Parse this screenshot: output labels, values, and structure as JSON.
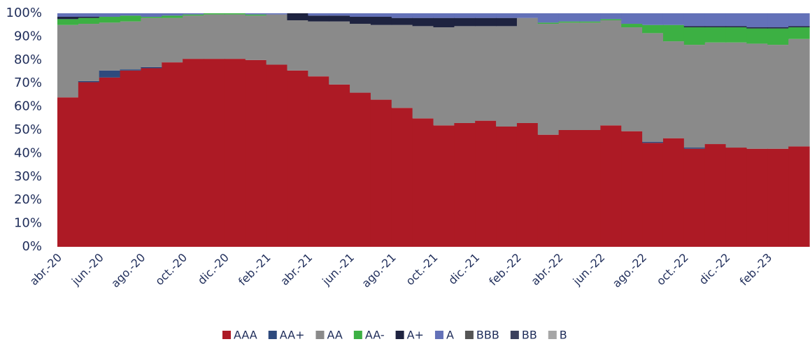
{
  "chart_data": {
    "type": "stacked-step-area",
    "categories": [
      "abr.-20",
      null,
      "jun.-20",
      null,
      "ago.-20",
      null,
      "oct.-20",
      null,
      "dic.-20",
      null,
      "feb.-21",
      null,
      "abr.-21",
      null,
      "jun.-21",
      null,
      "ago.-21",
      null,
      "oct.-21",
      null,
      "dic.-21",
      null,
      "feb.-22",
      null,
      "abr.-22",
      null,
      "jun.-22",
      null,
      "ago.-22",
      null,
      "oct.-22",
      null,
      "dic.-22",
      null,
      "feb.-23",
      null
    ],
    "series": [
      {
        "name": "AAA",
        "color": "#ad1a25",
        "values": [
          64,
          70.5,
          72.5,
          75.5,
          76.5,
          79,
          80.5,
          80.5,
          80.5,
          80,
          78,
          75.5,
          73,
          69.5,
          66,
          63,
          59.5,
          55,
          52,
          53,
          54,
          51.5,
          53,
          48,
          50,
          50,
          52,
          49.5,
          44.5,
          46.5,
          42,
          44,
          42.5,
          42,
          42,
          43
        ]
      },
      {
        "name": "AA+",
        "color": "#2e4a7d",
        "values": [
          0,
          0.5,
          3,
          0.5,
          0.5,
          0,
          0,
          0,
          0,
          0,
          0,
          0,
          0,
          0,
          0,
          0,
          0,
          0,
          0,
          0,
          0,
          0,
          0,
          0,
          0,
          0,
          0,
          0,
          0.5,
          0,
          0.5,
          0,
          0,
          0,
          0,
          0
        ]
      },
      {
        "name": "AA",
        "color": "#8a8a8a",
        "values": [
          31,
          24.5,
          20.5,
          20.5,
          21,
          19,
          18.5,
          19,
          19,
          19,
          21.5,
          21.5,
          23.5,
          27,
          29.5,
          32,
          35.5,
          39.5,
          42,
          41.5,
          40.5,
          43,
          45,
          47.5,
          46,
          46,
          45,
          44.5,
          46.5,
          41.5,
          44,
          43.5,
          45,
          45,
          44.5,
          46
        ]
      },
      {
        "name": "AA-",
        "color": "#3cb043",
        "values": [
          2.5,
          2.5,
          2.5,
          2.5,
          0.5,
          1,
          0.5,
          0.5,
          0.5,
          0.5,
          0,
          0,
          0,
          0,
          0,
          0,
          0,
          0,
          0,
          0,
          0,
          0,
          0,
          0.5,
          0.5,
          0.5,
          0.5,
          1.5,
          3.5,
          7,
          7.5,
          6.5,
          6.5,
          6.5,
          7,
          5
        ]
      },
      {
        "name": "A+",
        "color": "#1e2340",
        "values": [
          1,
          0.5,
          0,
          0,
          0,
          0,
          0,
          0,
          0,
          0,
          0,
          3,
          2.5,
          2.5,
          3,
          3.5,
          3,
          3.5,
          4,
          3.5,
          3.5,
          3.5,
          0,
          0,
          0,
          0,
          0,
          0,
          0,
          0,
          0.5,
          0.5,
          0.5,
          0.5,
          0.5,
          0.5
        ]
      },
      {
        "name": "A",
        "color": "#6371b8",
        "values": [
          1.5,
          1.5,
          1.5,
          1,
          1.5,
          1,
          0.5,
          0,
          0,
          0.5,
          0.5,
          0,
          1,
          1,
          1.5,
          1.5,
          2,
          2,
          2,
          2,
          2,
          2,
          2,
          4,
          3.5,
          3.5,
          2.5,
          4.5,
          5,
          5,
          5.5,
          5.5,
          5.5,
          6,
          6,
          5.5
        ]
      },
      {
        "name": "BBB",
        "color": "#555555",
        "values": [
          0,
          0,
          0,
          0,
          0,
          0,
          0,
          0,
          0,
          0,
          0,
          0,
          0,
          0,
          0,
          0,
          0,
          0,
          0,
          0,
          0,
          0,
          0,
          0,
          0,
          0,
          0,
          0,
          0,
          0,
          0,
          0,
          0,
          0,
          0,
          0
        ]
      },
      {
        "name": "BB",
        "color": "#3a3f5c",
        "values": [
          0,
          0,
          0,
          0,
          0,
          0,
          0,
          0,
          0,
          0,
          0,
          0,
          0,
          0,
          0,
          0,
          0,
          0,
          0,
          0,
          0,
          0,
          0,
          0,
          0,
          0,
          0,
          0,
          0,
          0,
          0,
          0,
          0,
          0,
          0,
          0
        ]
      },
      {
        "name": "B",
        "color": "#a6a6a6",
        "values": [
          0,
          0,
          0,
          0,
          0,
          0,
          0,
          0,
          0,
          0,
          0,
          0,
          0,
          0,
          0,
          0,
          0,
          0,
          0,
          0,
          0,
          0,
          0,
          0,
          0,
          0,
          0,
          0,
          0,
          0,
          0,
          0,
          0,
          0,
          0,
          0
        ]
      }
    ],
    "ylim": [
      0,
      100
    ],
    "yticks": [
      {
        "value": 0,
        "label": "0%"
      },
      {
        "value": 10,
        "label": "10%"
      },
      {
        "value": 20,
        "label": "20%"
      },
      {
        "value": 30,
        "label": "30%"
      },
      {
        "value": 40,
        "label": "40%"
      },
      {
        "value": 50,
        "label": "50%"
      },
      {
        "value": 60,
        "label": "60%"
      },
      {
        "value": 70,
        "label": "70%"
      },
      {
        "value": 80,
        "label": "80%"
      },
      {
        "value": 90,
        "label": "90%"
      },
      {
        "value": 100,
        "label": "100%"
      }
    ],
    "legend": "bottom"
  }
}
